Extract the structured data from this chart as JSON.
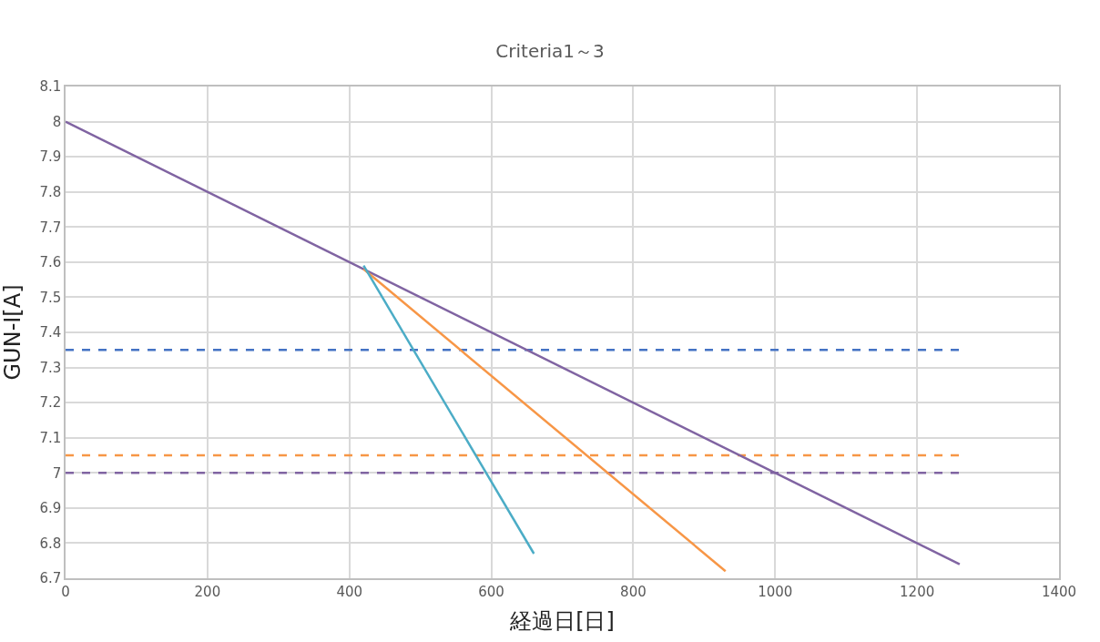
{
  "chart_data": {
    "type": "line",
    "title": "Criteria1～3",
    "xlabel": "経過日[日]",
    "ylabel": "GUN-I[A]",
    "xlim": [
      0,
      1400
    ],
    "xticks": [
      0,
      200,
      400,
      600,
      800,
      1000,
      1200,
      1400
    ],
    "ylim": [
      6.7,
      8.1
    ],
    "yticks": [
      6.7,
      6.8,
      6.9,
      7,
      7.1,
      7.2,
      7.3,
      7.4,
      7.5,
      7.6,
      7.7,
      7.8,
      7.9,
      8,
      8.1
    ],
    "grid": true,
    "marker": "none",
    "series": [
      {
        "color": "#4472c4",
        "x": [
          0,
          1260
        ],
        "values": [
          7.35,
          7.35
        ],
        "line_style": "dashed"
      },
      {
        "color": "#f79646",
        "x": [
          0,
          1260
        ],
        "values": [
          7.05,
          7.05
        ],
        "line_style": "dashed"
      },
      {
        "color": "#8064a2",
        "x": [
          0,
          1260
        ],
        "values": [
          7.0,
          7.0
        ],
        "line_style": "dashed"
      },
      {
        "color": "#8064a2",
        "x": [
          0,
          1260
        ],
        "values": [
          8.0,
          6.74
        ],
        "line_style": "solid"
      },
      {
        "color": "#f79646",
        "x": [
          420,
          930
        ],
        "values": [
          7.58,
          6.72
        ],
        "line_style": "solid"
      },
      {
        "color": "#4bacc6",
        "x": [
          420,
          660
        ],
        "values": [
          7.59,
          6.77
        ],
        "line_style": "solid"
      }
    ]
  }
}
